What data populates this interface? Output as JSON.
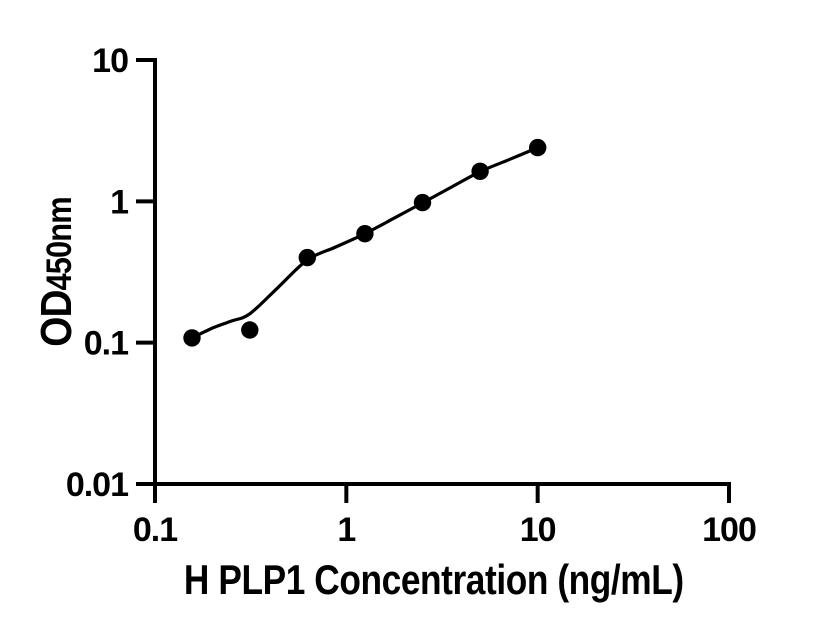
{
  "figure": {
    "background_color": "#ffffff",
    "foreground_color": "#000000"
  },
  "chart_data": {
    "type": "scatter",
    "title": "",
    "xlabel": "H PLP1 Concentration (ng/mL)",
    "ylabel": "OD450nm",
    "ylabel_parts": {
      "large": "OD",
      "small": "450nm"
    },
    "x_scale": "log10",
    "y_scale": "log10",
    "xlim": [
      0.1,
      100
    ],
    "ylim": [
      0.01,
      10
    ],
    "x_ticks": [
      {
        "v": 0.1,
        "label": "0.1"
      },
      {
        "v": 1,
        "label": "1"
      },
      {
        "v": 10,
        "label": "10"
      },
      {
        "v": 100,
        "label": "100"
      }
    ],
    "y_ticks": [
      {
        "v": 0.01,
        "label": "0.01"
      },
      {
        "v": 0.1,
        "label": "0.1"
      },
      {
        "v": 1,
        "label": "1"
      },
      {
        "v": 10,
        "label": "10"
      }
    ],
    "grid": false,
    "legend": null,
    "axis_color": "#000000",
    "series": [
      {
        "marker": "filled-circle",
        "color": "#000000",
        "points": [
          {
            "x": 0.156,
            "y": 0.108
          },
          {
            "x": 0.313,
            "y": 0.123
          },
          {
            "x": 0.625,
            "y": 0.4
          },
          {
            "x": 1.25,
            "y": 0.59
          },
          {
            "x": 2.5,
            "y": 0.98
          },
          {
            "x": 5,
            "y": 1.63
          },
          {
            "x": 10,
            "y": 2.4
          }
        ]
      }
    ],
    "fit_curve": {
      "color": "#000000",
      "points": [
        {
          "x": 0.156,
          "y": 0.108
        },
        {
          "x": 0.2,
          "y": 0.127
        },
        {
          "x": 0.25,
          "y": 0.142
        },
        {
          "x": 0.313,
          "y": 0.16
        },
        {
          "x": 0.44,
          "y": 0.246
        },
        {
          "x": 0.625,
          "y": 0.385
        },
        {
          "x": 0.88,
          "y": 0.475
        },
        {
          "x": 1.25,
          "y": 0.59
        },
        {
          "x": 1.77,
          "y": 0.758
        },
        {
          "x": 2.5,
          "y": 0.975
        },
        {
          "x": 3.54,
          "y": 1.26
        },
        {
          "x": 5.0,
          "y": 1.62
        },
        {
          "x": 7.07,
          "y": 1.97
        },
        {
          "x": 10,
          "y": 2.4
        }
      ]
    }
  }
}
